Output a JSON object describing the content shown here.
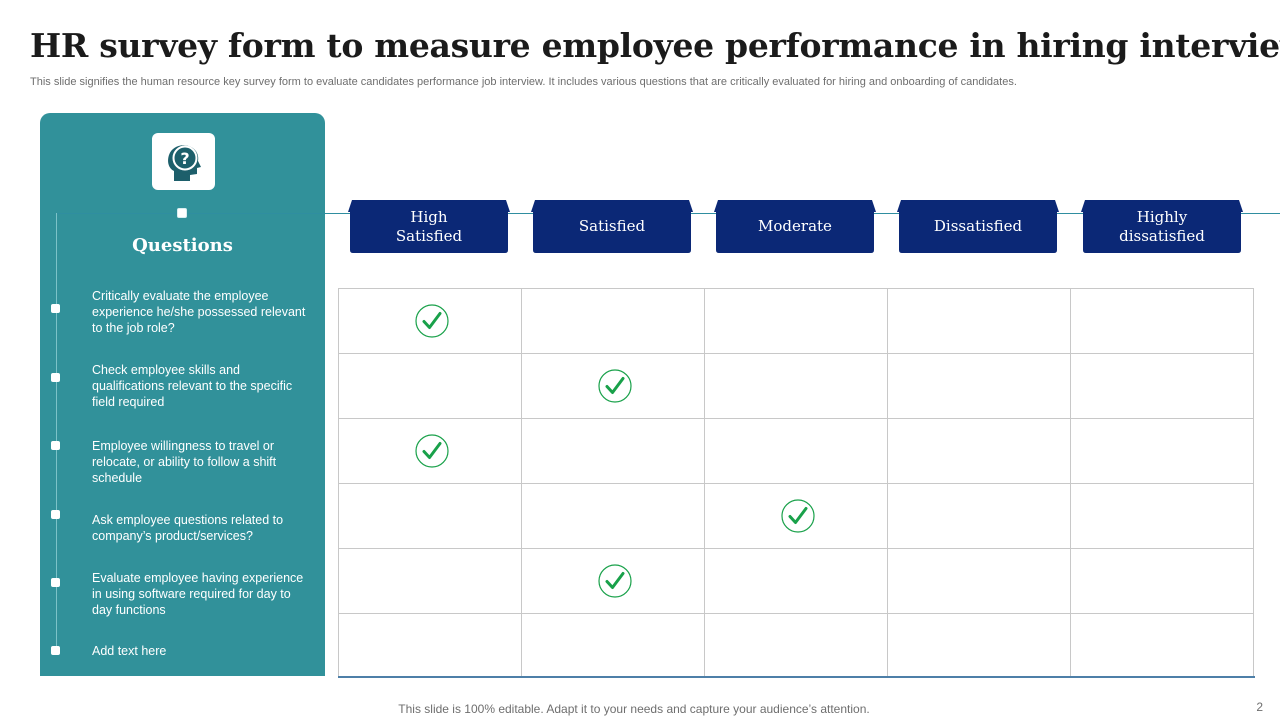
{
  "header": {
    "title": "HR survey form to measure employee performance in hiring interview",
    "subtitle": "This slide signifies the human resource key survey form to evaluate candidates performance job interview. It includes various questions that are critically evaluated for hiring and onboarding of candidates."
  },
  "panel": {
    "icon": "head-question-icon",
    "heading": "Questions",
    "questions": [
      "Critically evaluate  the employee experience he/she possessed relevant  to the job role?",
      "Check employee skills and qualifications relevant  to the specific field required",
      "Employee willingness to travel or relocate, or ability to follow  a shift schedule",
      "Ask employee questions related to company’s product/services?",
      "Evaluate  employee having experience in using software required  for day to day functions",
      "Add text here"
    ]
  },
  "scale": {
    "columns": [
      "High Satisfied",
      "Satisfied",
      "Moderate",
      "Dissatisfied",
      "Highly dissatisfied"
    ],
    "responses": [
      0,
      1,
      0,
      2,
      1,
      null
    ]
  },
  "footer": {
    "note": "This slide is 100% editable. Adapt it to your needs and capture your audience’s attention.",
    "page": "2"
  },
  "colors": {
    "panel": "#31919a",
    "header_tab": "#0b2876",
    "check": "#19a14a"
  }
}
